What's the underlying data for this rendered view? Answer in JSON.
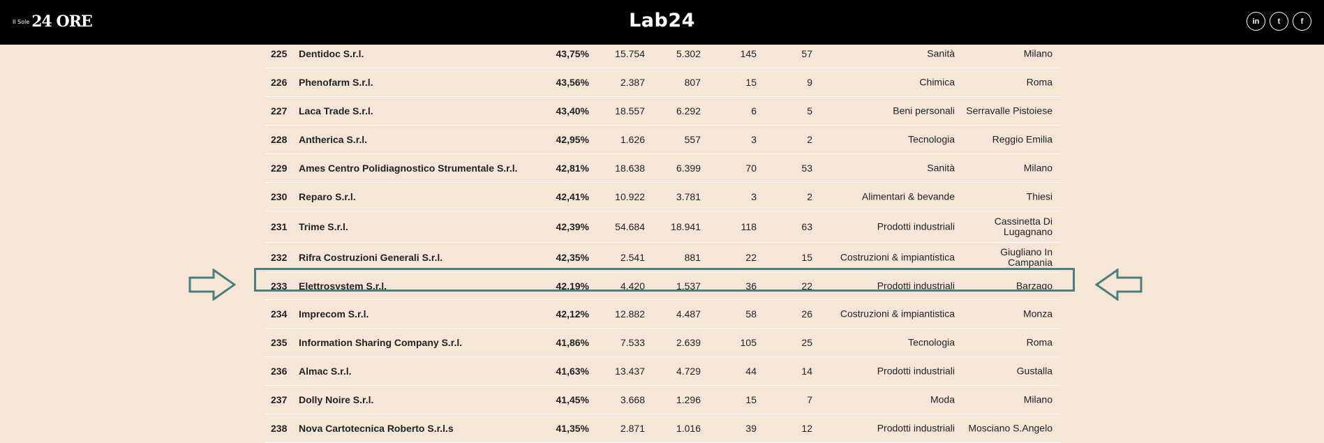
{
  "header": {
    "sole_small": "Il Sole",
    "sole_big": "24 ORE",
    "lab_logo": "Lab24",
    "social": [
      "in",
      "t",
      "f"
    ]
  },
  "rows": [
    {
      "rank": "225",
      "name": "Dentidoc S.r.l.",
      "pct": "43,75%",
      "v1": "15.754",
      "v2": "5.302",
      "v3": "145",
      "v4": "57",
      "sector": "Sanità",
      "city": "Milano"
    },
    {
      "rank": "226",
      "name": "Phenofarm S.r.l.",
      "pct": "43,56%",
      "v1": "2.387",
      "v2": "807",
      "v3": "15",
      "v4": "9",
      "sector": "Chimica",
      "city": "Roma"
    },
    {
      "rank": "227",
      "name": "Laca Trade S.r.l.",
      "pct": "43,40%",
      "v1": "18.557",
      "v2": "6.292",
      "v3": "6",
      "v4": "5",
      "sector": "Beni personali",
      "city": "Serravalle Pistoiese"
    },
    {
      "rank": "228",
      "name": "Antherica S.r.l.",
      "pct": "42,95%",
      "v1": "1.626",
      "v2": "557",
      "v3": "3",
      "v4": "2",
      "sector": "Tecnologia",
      "city": "Reggio Emilia"
    },
    {
      "rank": "229",
      "name": "Ames Centro Polidiagnostico Strumentale S.r.l.",
      "pct": "42,81%",
      "v1": "18.638",
      "v2": "6.399",
      "v3": "70",
      "v4": "53",
      "sector": "Sanità",
      "city": "Milano"
    },
    {
      "rank": "230",
      "name": "Reparo S.r.l.",
      "pct": "42,41%",
      "v1": "10.922",
      "v2": "3.781",
      "v3": "3",
      "v4": "2",
      "sector": "Alimentari & bevande",
      "city": "Thiesi"
    },
    {
      "rank": "231",
      "name": "Trime S.r.l.",
      "pct": "42,39%",
      "v1": "54.684",
      "v2": "18.941",
      "v3": "118",
      "v4": "63",
      "sector": "Prodotti industriali",
      "city": "Cassinetta Di Lugagnano"
    },
    {
      "rank": "232",
      "name": "Rifra Costruzioni Generali S.r.l.",
      "pct": "42,35%",
      "v1": "2.541",
      "v2": "881",
      "v3": "22",
      "v4": "15",
      "sector": "Costruzioni & impiantistica",
      "city": "Giugliano In Campania"
    },
    {
      "rank": "233",
      "name": "Elettrosystem S.r.l.",
      "pct": "42,19%",
      "v1": "4.420",
      "v2": "1.537",
      "v3": "36",
      "v4": "22",
      "sector": "Prodotti industriali",
      "city": "Barzago"
    },
    {
      "rank": "234",
      "name": "Imprecom S.r.l.",
      "pct": "42,12%",
      "v1": "12.882",
      "v2": "4.487",
      "v3": "58",
      "v4": "26",
      "sector": "Costruzioni & impiantistica",
      "city": "Monza"
    },
    {
      "rank": "235",
      "name": "Information Sharing Company S.r.l.",
      "pct": "41,86%",
      "v1": "7.533",
      "v2": "2.639",
      "v3": "105",
      "v4": "25",
      "sector": "Tecnologia",
      "city": "Roma"
    },
    {
      "rank": "236",
      "name": "Almac S.r.l.",
      "pct": "41,63%",
      "v1": "13.437",
      "v2": "4.729",
      "v3": "44",
      "v4": "14",
      "sector": "Prodotti industriali",
      "city": "Gustalla"
    },
    {
      "rank": "237",
      "name": "Dolly Noire S.r.l.",
      "pct": "41,45%",
      "v1": "3.668",
      "v2": "1.296",
      "v3": "15",
      "v4": "7",
      "sector": "Moda",
      "city": "Milano"
    },
    {
      "rank": "238",
      "name": "Nova Cartotecnica Roberto S.r.l.s",
      "pct": "41,35%",
      "v1": "2.871",
      "v2": "1.016",
      "v3": "39",
      "v4": "12",
      "sector": "Prodotti industriali",
      "city": "Mosciano S.Angelo"
    }
  ],
  "colors": {
    "background": "#f5e6d8",
    "header": "#000000",
    "highlight": "#4a7f7c"
  },
  "annotation": {
    "highlighted_rank": "233",
    "arrows": [
      "right-arrow-icon",
      "left-arrow-icon"
    ]
  }
}
